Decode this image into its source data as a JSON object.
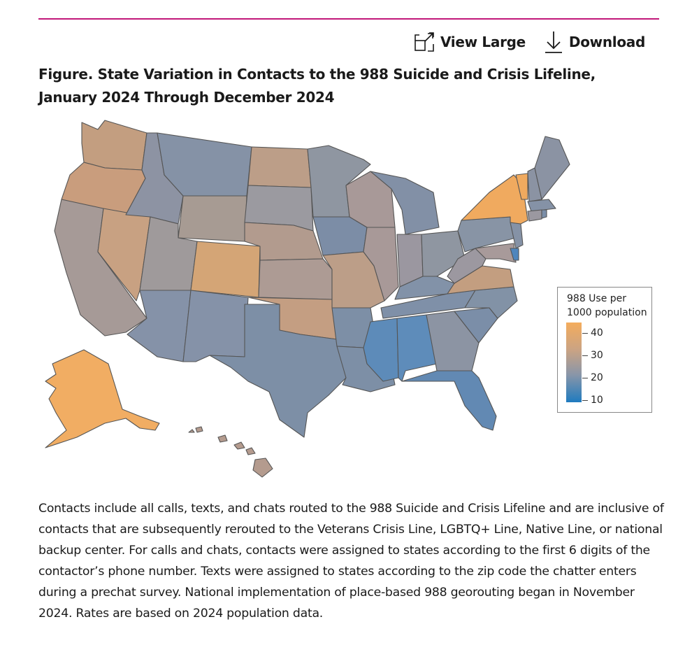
{
  "toolbar": {
    "view_large_label": "View Large",
    "download_label": "Download",
    "view_large_icon": "expand-icon",
    "download_icon": "download-arrow-icon"
  },
  "figure": {
    "title": "Figure.  State Variation in Contacts to the 988 Suicide and Crisis Lifeline, January 2024 Through December 2024",
    "caption": "Contacts include all calls, texts, and chats routed to the 988 Suicide and Crisis Lifeline and are inclusive of contacts that are subsequently rerouted to the Veterans Crisis Line, LGBTQ+ Line, Native Line, or national backup center. For calls and chats, contacts were assigned to states according to the first 6 digits of the contactor’s phone number. Texts were assigned to states according to the zip code the chatter enters during a prechat survey. National implementation of place-based 988 georouting began in November 2024. Rates are based on 2024 population data."
  },
  "legend": {
    "title_line1": "988 Use per",
    "title_line2": "1000 population",
    "ticks": [
      "40",
      "30",
      "20",
      "10"
    ],
    "colors": {
      "high": "#f4ac5c",
      "mid_high": "#c9a384",
      "mid": "#8a96a8",
      "low": "#1f7bbf"
    }
  },
  "colors": {
    "accent_rule": "#c2187a"
  }
}
